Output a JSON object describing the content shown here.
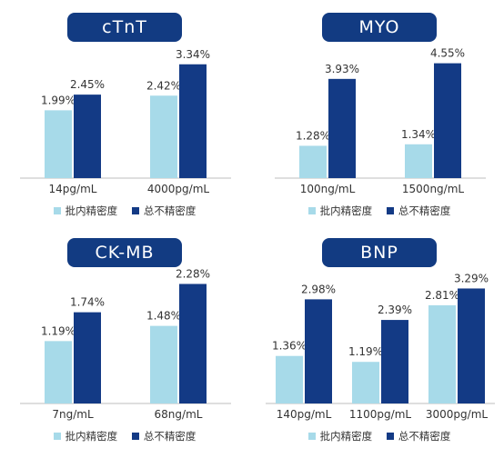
{
  "legend": {
    "s1": "批内精密度",
    "s2": "总不精密度"
  },
  "colors": {
    "s1": "#a7dae9",
    "s2": "#133a85",
    "title_bg": "#123b82"
  },
  "chart_data": [
    {
      "type": "bar",
      "title": "cTnT",
      "categories": [
        "14pg/mL",
        "4000pg/mL"
      ],
      "series": [
        {
          "name": "批内精密度",
          "values": [
            1.99,
            2.42
          ],
          "labels": [
            "1.99%",
            "2.42%"
          ]
        },
        {
          "name": "总不精密度",
          "values": [
            2.45,
            3.34
          ],
          "labels": [
            "2.45%",
            "3.34%"
          ]
        }
      ],
      "ylim": [
        0,
        4.0
      ]
    },
    {
      "type": "bar",
      "title": "MYO",
      "categories": [
        "100ng/mL",
        "1500ng/mL"
      ],
      "series": [
        {
          "name": "批内精密度",
          "values": [
            1.28,
            1.34
          ],
          "labels": [
            "1.28%",
            "1.34%"
          ]
        },
        {
          "name": "总不精密度",
          "values": [
            3.93,
            4.55
          ],
          "labels": [
            "3.93%",
            "4.55%"
          ]
        }
      ],
      "ylim": [
        0,
        5.4
      ]
    },
    {
      "type": "bar",
      "title": "CK-MB",
      "categories": [
        "7ng/mL",
        "68ng/mL"
      ],
      "series": [
        {
          "name": "批内精密度",
          "values": [
            1.19,
            1.48
          ],
          "labels": [
            "1.19%",
            "1.48%"
          ]
        },
        {
          "name": "总不精密度",
          "values": [
            1.74,
            2.28
          ],
          "labels": [
            "1.74%",
            "2.28%"
          ]
        }
      ],
      "ylim": [
        0,
        2.6
      ]
    },
    {
      "type": "bar",
      "title": "BNP",
      "categories": [
        "140pg/mL",
        "1100pg/mL",
        "3000pg/mL"
      ],
      "series": [
        {
          "name": "批内精密度",
          "values": [
            1.36,
            1.19,
            2.81
          ],
          "labels": [
            "1.36%",
            "1.19%",
            "2.81%"
          ]
        },
        {
          "name": "总不精密度",
          "values": [
            2.98,
            2.39,
            3.29
          ],
          "labels": [
            "2.98%",
            "2.39%",
            "3.29%"
          ]
        }
      ],
      "ylim": [
        0,
        3.9
      ]
    }
  ]
}
